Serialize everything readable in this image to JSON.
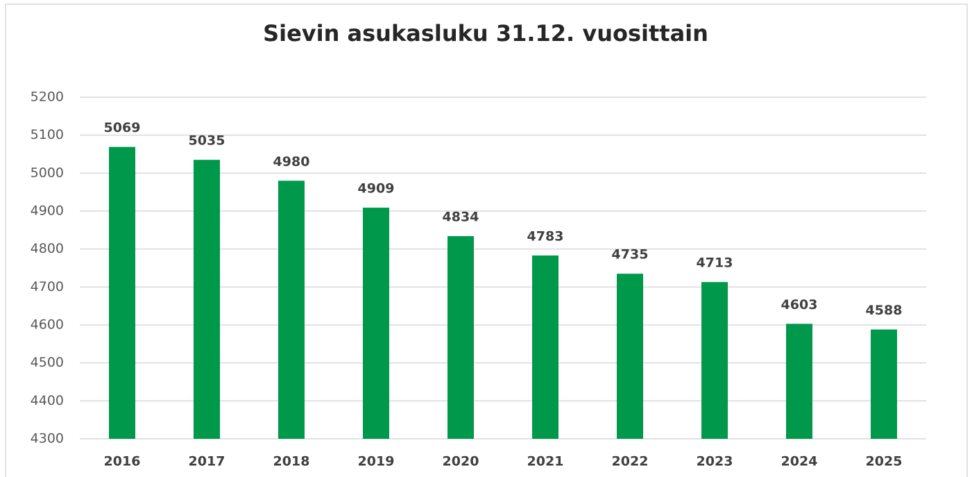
{
  "chart_data": {
    "type": "bar",
    "title": "Sievin asukasluku 31.12. vuosittain",
    "categories": [
      "2016",
      "2017",
      "2018",
      "2019",
      "2020",
      "2021",
      "2022",
      "2023",
      "2024",
      "2025"
    ],
    "values": [
      5069,
      5035,
      4980,
      4909,
      4834,
      4783,
      4735,
      4713,
      4603,
      4588
    ],
    "color": "#00984a",
    "ylim": [
      4300,
      5200
    ],
    "yticks": [
      4300,
      4400,
      4500,
      4600,
      4700,
      4800,
      4900,
      5000,
      5100,
      5200
    ],
    "grid": true
  }
}
